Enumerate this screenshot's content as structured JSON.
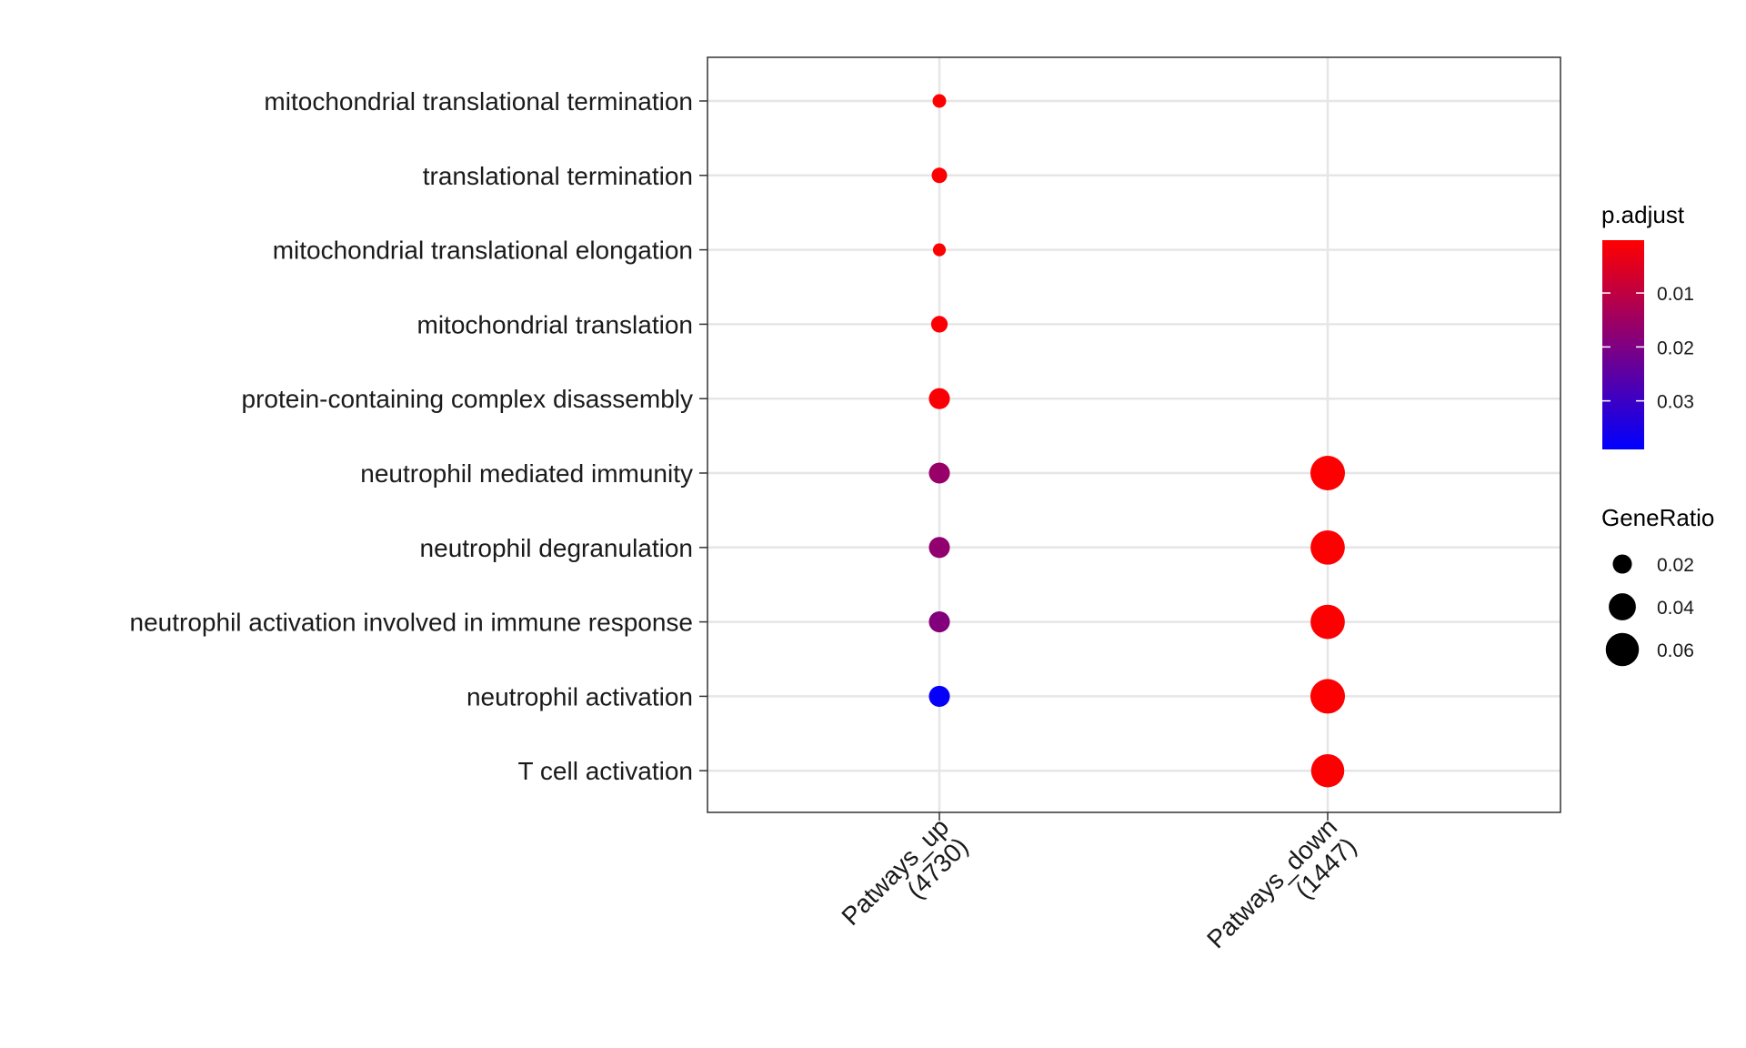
{
  "chart_data": {
    "type": "scatter",
    "title": "",
    "xlabel": "",
    "ylabel": "",
    "grid": true,
    "legend_placement": "right",
    "x_categories": [
      {
        "id": "up",
        "lines": [
          "Patways_up",
          "(4730)"
        ]
      },
      {
        "id": "down",
        "lines": [
          "Patways_down",
          "(1447)"
        ]
      }
    ],
    "y_categories": [
      "mitochondrial translational termination",
      "translational termination",
      "mitochondrial translational elongation",
      "mitochondrial translation",
      "protein-containing complex disassembly",
      "neutrophil mediated immunity",
      "neutrophil degranulation",
      "neutrophil activation involved in immune response",
      "neutrophil activation",
      "T cell activation"
    ],
    "points": [
      {
        "x": "up",
        "y": "mitochondrial translational termination",
        "gene_ratio": 0.01,
        "p_adjust": 0.0005
      },
      {
        "x": "up",
        "y": "translational termination",
        "gene_ratio": 0.013,
        "p_adjust": 0.0005
      },
      {
        "x": "up",
        "y": "mitochondrial translational elongation",
        "gene_ratio": 0.009,
        "p_adjust": 0.0005
      },
      {
        "x": "up",
        "y": "mitochondrial translation",
        "gene_ratio": 0.015,
        "p_adjust": 0.001
      },
      {
        "x": "up",
        "y": "protein-containing complex disassembly",
        "gene_ratio": 0.024,
        "p_adjust": 0.001
      },
      {
        "x": "up",
        "y": "neutrophil mediated immunity",
        "gene_ratio": 0.024,
        "p_adjust": 0.016
      },
      {
        "x": "up",
        "y": "neutrophil degranulation",
        "gene_ratio": 0.024,
        "p_adjust": 0.017
      },
      {
        "x": "up",
        "y": "neutrophil activation involved in immune response",
        "gene_ratio": 0.024,
        "p_adjust": 0.019
      },
      {
        "x": "up",
        "y": "neutrophil activation",
        "gene_ratio": 0.024,
        "p_adjust": 0.038
      },
      {
        "x": "down",
        "y": "neutrophil mediated immunity",
        "gene_ratio": 0.065,
        "p_adjust": 0.0005
      },
      {
        "x": "down",
        "y": "neutrophil degranulation",
        "gene_ratio": 0.064,
        "p_adjust": 0.0005
      },
      {
        "x": "down",
        "y": "neutrophil activation involved in immune response",
        "gene_ratio": 0.064,
        "p_adjust": 0.0005
      },
      {
        "x": "down",
        "y": "neutrophil activation",
        "gene_ratio": 0.065,
        "p_adjust": 0.0005
      },
      {
        "x": "down",
        "y": "T cell activation",
        "gene_ratio": 0.06,
        "p_adjust": 0.0005
      }
    ],
    "color_legend": {
      "title": "p.adjust",
      "ticks": [
        "0.01",
        "0.02",
        "0.03"
      ],
      "tick_values": [
        0.01,
        0.02,
        0.03
      ],
      "range": [
        0.0002,
        0.039
      ],
      "color_low_p": "#ff0000",
      "color_high_p": "#0000ff"
    },
    "size_legend": {
      "title": "GeneRatio",
      "labels": [
        "0.02",
        "0.04",
        "0.06"
      ],
      "values": [
        0.02,
        0.04,
        0.06
      ]
    }
  }
}
